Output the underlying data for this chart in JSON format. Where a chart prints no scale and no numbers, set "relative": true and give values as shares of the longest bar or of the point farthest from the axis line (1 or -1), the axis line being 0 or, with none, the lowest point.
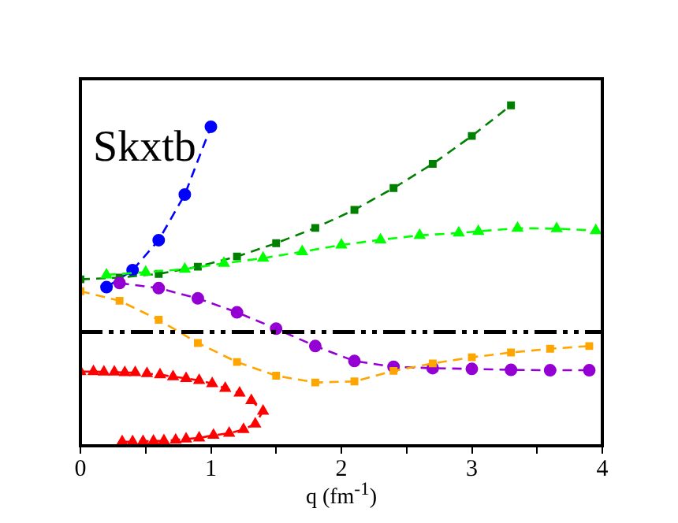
{
  "chart_data": {
    "type": "line",
    "relative": true,
    "xlabel": "q (fm$^{-1}$)",
    "annotations": [
      "Skxtb"
    ],
    "xlim": [
      0,
      4
    ],
    "xticks": [
      0,
      {
        "value": 0.5,
        "label": null
      },
      1,
      {
        "value": 1.5,
        "label": null
      },
      2,
      {
        "value": 2.5,
        "label": null
      },
      3,
      {
        "value": 3.5,
        "label": null
      },
      4
    ],
    "grid": false,
    "legend": false,
    "line_style": "dashed",
    "ref_lines": [
      {
        "axis": "y",
        "value": 0.334,
        "color": "#000000",
        "line_style": "dashdot"
      }
    ],
    "series": [
      {
        "color": "#0000ff",
        "marker": "circle",
        "x": [
          0.2,
          0.4,
          0.6,
          0.8,
          1.0
        ],
        "values": [
          0.466,
          0.516,
          0.604,
          0.738,
          0.937
        ]
      },
      {
        "color": "#008000",
        "marker": "square",
        "x": [
          0,
          0.3,
          0.6,
          0.9,
          1.2,
          1.5,
          1.8,
          2.1,
          2.4,
          2.7,
          3.0,
          3.3
        ],
        "values": [
          0.489,
          0.494,
          0.505,
          0.526,
          0.556,
          0.595,
          0.64,
          0.693,
          0.757,
          0.828,
          0.91,
          1
        ]
      },
      {
        "color": "#00ff00",
        "marker": "triangle",
        "x": [
          0.2,
          0.5,
          0.8,
          1.1,
          1.4,
          1.7,
          2.0,
          2.3,
          2.6,
          2.9,
          3.05,
          3.35,
          3.65,
          3.95
        ],
        "values": [
          0.502,
          0.51,
          0.519,
          0.536,
          0.551,
          0.57,
          0.59,
          0.605,
          0.618,
          0.625,
          0.63,
          0.639,
          0.638,
          0.632
        ]
      },
      {
        "color": "#9400d3",
        "marker": "circle",
        "x": [
          0.3,
          0.6,
          0.9,
          1.2,
          1.5,
          1.8,
          2.1,
          2.4,
          2.7,
          3.0,
          3.3,
          3.6,
          3.9
        ],
        "values": [
          0.478,
          0.463,
          0.433,
          0.392,
          0.344,
          0.293,
          0.249,
          0.232,
          0.228,
          0.226,
          0.223,
          0.222,
          0.222
        ]
      },
      {
        "color": "#ffa500",
        "marker": "square",
        "x": [
          0,
          0.3,
          0.6,
          0.9,
          1.2,
          1.5,
          1.8,
          2.1,
          2.4,
          2.7,
          3.0,
          3.3,
          3.6,
          3.9
        ],
        "values": [
          0.454,
          0.426,
          0.37,
          0.302,
          0.246,
          0.206,
          0.186,
          0.189,
          0.22,
          0.242,
          0.26,
          0.274,
          0.285,
          0.293
        ]
      },
      {
        "color": "#ff0000",
        "marker": "triangle",
        "x": [
          0,
          0.1,
          0.18,
          0.26,
          0.34,
          0.42,
          0.51,
          0.61,
          0.71,
          0.81,
          0.91,
          1.01,
          1.11,
          1.22,
          1.31,
          1.4,
          1.34,
          1.25,
          1.14,
          1.02,
          0.91,
          0.81,
          0.73,
          0.64,
          0.56,
          0.48,
          0.4,
          0.32
        ],
        "values": [
          0.218,
          0.218,
          0.217,
          0.217,
          0.215,
          0.215,
          0.212,
          0.209,
          0.203,
          0.198,
          0.192,
          0.183,
          0.169,
          0.155,
          0.133,
          0.102,
          0.064,
          0.048,
          0.037,
          0.031,
          0.023,
          0.02,
          0.017,
          0.015,
          0.014,
          0.013,
          0.012,
          0.012
        ]
      }
    ]
  }
}
